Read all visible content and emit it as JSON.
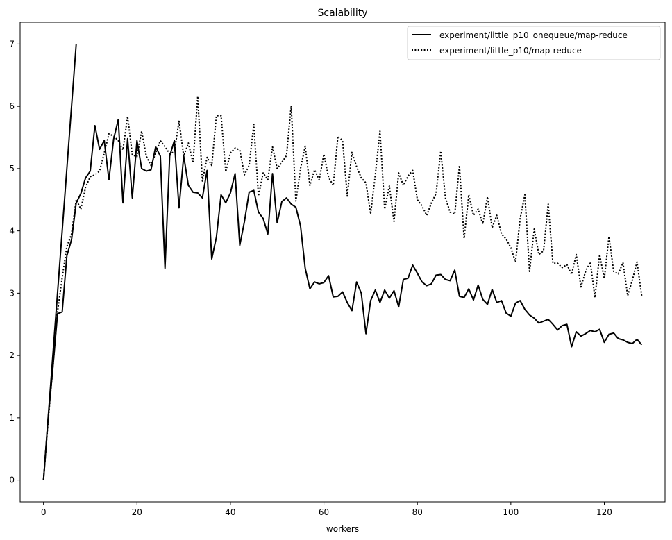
{
  "chart_data": {
    "type": "line",
    "title": "Scalability",
    "xlabel": "workers",
    "ylabel": "",
    "xlim": [
      -5,
      133
    ],
    "ylim": [
      -0.35,
      7.35
    ],
    "xticks": [
      0,
      20,
      40,
      60,
      80,
      100,
      120
    ],
    "yticks": [
      0,
      1,
      2,
      3,
      4,
      5,
      6,
      7
    ],
    "grid": false,
    "legend_position": "top-right",
    "series": [
      {
        "name": "experiment/little_p10_onequeue/map-reduce",
        "color": "#000000",
        "style": "solid",
        "segments": [
          {
            "x": [
              0,
              1,
              2,
              3,
              4,
              5,
              6,
              7
            ],
            "y": [
              0.0,
              1.0,
              2.0,
              3.0,
              4.0,
              5.0,
              6.0,
              7.0
            ]
          },
          {
            "x": [
              0,
              1,
              2,
              3,
              4,
              5,
              6,
              7,
              8,
              9,
              10,
              11,
              12,
              13,
              14,
              15,
              16,
              17,
              18,
              19,
              20,
              21,
              22,
              23,
              24,
              25,
              26,
              27,
              28,
              29,
              30,
              31,
              32,
              33,
              34,
              35,
              36,
              37,
              38,
              39,
              40,
              41,
              42,
              43,
              44,
              45,
              46,
              47,
              48,
              49,
              50,
              51,
              52,
              53,
              54,
              55,
              56,
              57,
              58,
              59,
              60,
              61,
              62,
              63,
              64,
              65,
              66,
              67,
              68,
              69,
              70,
              71,
              72,
              73,
              74,
              75,
              76,
              77,
              78,
              79,
              80,
              81,
              82,
              83,
              84,
              85,
              86,
              87,
              88,
              89,
              90,
              91,
              92,
              93,
              94,
              95,
              96,
              97,
              98,
              99,
              100,
              101,
              102,
              103,
              104,
              105,
              106,
              107,
              108,
              109,
              110,
              111,
              112,
              113,
              114,
              115,
              116,
              117,
              118,
              119,
              120,
              121,
              122,
              123,
              124,
              125,
              126,
              127,
              128
            ],
            "y": [
              0.0,
              1.0,
              1.8,
              2.67,
              2.7,
              3.6,
              3.86,
              4.45,
              4.6,
              4.85,
              4.96,
              5.69,
              5.31,
              5.45,
              4.82,
              5.47,
              5.79,
              4.45,
              5.48,
              4.53,
              5.45,
              5.0,
              4.96,
              4.98,
              5.35,
              5.2,
              3.4,
              5.2,
              5.45,
              4.37,
              5.2,
              4.73,
              4.62,
              4.61,
              4.53,
              4.97,
              3.55,
              3.9,
              4.58,
              4.45,
              4.61,
              4.92,
              3.77,
              4.15,
              4.62,
              4.65,
              4.3,
              4.2,
              3.95,
              4.92,
              4.13,
              4.47,
              4.53,
              4.43,
              4.38,
              4.08,
              3.4,
              3.07,
              3.18,
              3.15,
              3.17,
              3.28,
              2.94,
              2.95,
              3.02,
              2.85,
              2.72,
              3.18,
              3.0,
              2.35,
              2.88,
              3.05,
              2.85,
              3.05,
              2.92,
              3.04,
              2.78,
              3.22,
              3.24,
              3.45,
              3.32,
              3.18,
              3.12,
              3.15,
              3.29,
              3.3,
              3.22,
              3.2,
              3.37,
              2.95,
              2.93,
              3.07,
              2.89,
              3.13,
              2.9,
              2.82,
              3.06,
              2.85,
              2.88,
              2.68,
              2.63,
              2.84,
              2.88,
              2.74,
              2.65,
              2.6,
              2.52,
              2.55,
              2.58,
              2.5,
              2.41,
              2.48,
              2.5,
              2.14,
              2.38,
              2.31,
              2.35,
              2.4,
              2.38,
              2.42,
              2.21,
              2.34,
              2.36,
              2.27,
              2.25,
              2.21,
              2.19,
              2.26,
              2.17
            ]
          }
        ]
      },
      {
        "name": "experiment/little_p10/map-reduce",
        "color": "#000000",
        "style": "dotted",
        "segments": [
          {
            "x": [
              0,
              1,
              2,
              3,
              4,
              5,
              6,
              7,
              8,
              9,
              10,
              11,
              12,
              13,
              14,
              15,
              16,
              17,
              18,
              19,
              20,
              21,
              22,
              23,
              24,
              25,
              26,
              27,
              28,
              29,
              30,
              31,
              32,
              33,
              34,
              35,
              36,
              37,
              38,
              39,
              40,
              41,
              42,
              43,
              44,
              45,
              46,
              47,
              48,
              49,
              50,
              51,
              52,
              53,
              54,
              55,
              56,
              57,
              58,
              59,
              60,
              61,
              62,
              63,
              64,
              65,
              66,
              67,
              68,
              69,
              70,
              71,
              72,
              73,
              74,
              75,
              76,
              77,
              78,
              79,
              80,
              81,
              82,
              83,
              84,
              85,
              86,
              87,
              88,
              89,
              90,
              91,
              92,
              93,
              94,
              95,
              96,
              97,
              98,
              99,
              100,
              101,
              102,
              103,
              104,
              105,
              106,
              107,
              108,
              109,
              110,
              111,
              112,
              113,
              114,
              115,
              116,
              117,
              118,
              119,
              120,
              121,
              122,
              123,
              124,
              125,
              126,
              127,
              128
            ],
            "y": [
              0.0,
              0.95,
              1.8,
              2.7,
              3.25,
              3.75,
              3.95,
              4.5,
              4.35,
              4.7,
              4.87,
              4.9,
              4.96,
              5.25,
              5.56,
              5.52,
              5.45,
              5.3,
              5.84,
              5.22,
              5.19,
              5.6,
              5.2,
              5.05,
              5.25,
              5.45,
              5.35,
              5.24,
              5.27,
              5.76,
              5.2,
              5.41,
              5.09,
              6.16,
              4.8,
              5.18,
              5.05,
              5.85,
              5.85,
              4.95,
              5.25,
              5.33,
              5.3,
              4.9,
              5.05,
              5.71,
              4.56,
              4.93,
              4.82,
              5.35,
              5.0,
              5.1,
              5.21,
              6.01,
              4.48,
              5.0,
              5.36,
              4.73,
              4.98,
              4.82,
              5.23,
              4.86,
              4.73,
              5.52,
              5.45,
              4.56,
              5.26,
              5.03,
              4.85,
              4.77,
              4.27,
              4.9,
              5.6,
              4.35,
              4.72,
              4.15,
              4.93,
              4.73,
              4.88,
              4.97,
              4.5,
              4.4,
              4.25,
              4.45,
              4.6,
              5.28,
              4.53,
              4.3,
              4.27,
              5.05,
              3.88,
              4.58,
              4.25,
              4.35,
              4.11,
              4.55,
              4.05,
              4.25,
              3.95,
              3.87,
              3.73,
              3.5,
              4.2,
              4.58,
              3.35,
              4.03,
              3.62,
              3.68,
              4.43,
              3.48,
              3.48,
              3.41,
              3.46,
              3.3,
              3.62,
              3.1,
              3.35,
              3.5,
              2.93,
              3.62,
              3.23,
              3.91,
              3.35,
              3.31,
              3.49,
              2.96,
              3.21,
              3.5,
              2.96
            ]
          }
        ]
      }
    ]
  }
}
